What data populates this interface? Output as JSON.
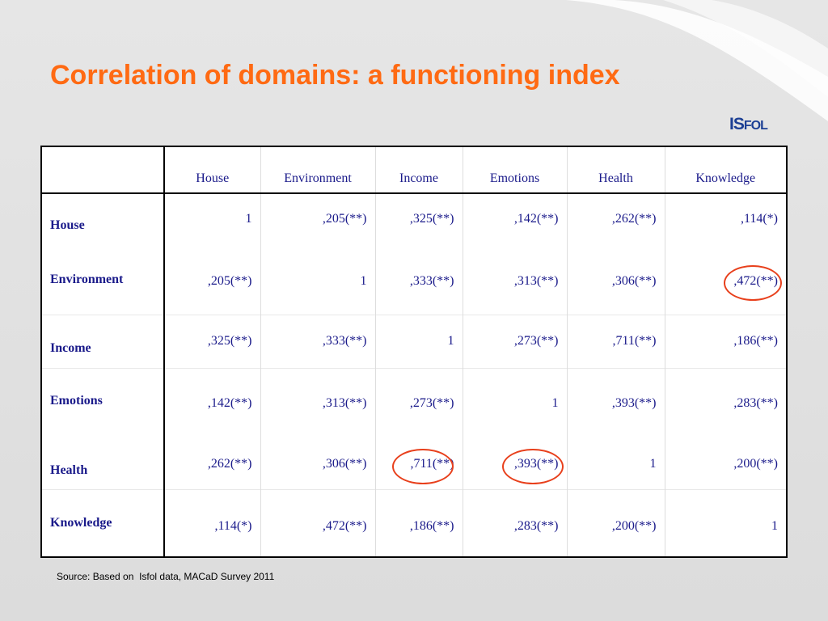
{
  "slide": {
    "title": "Correlation of domains: a functioning index",
    "logo_main": "IS",
    "logo_rest": "FOL",
    "source": "Source: Based on  Isfol data, MACaD Survey 2011",
    "colors": {
      "title": "#ff6a13",
      "table_text": "#1a1a8a",
      "highlight": "#e8401c",
      "logo": "#1c3f94"
    }
  },
  "table": {
    "columns": [
      "House",
      "Environment",
      "Income",
      "Emotions",
      "Health",
      "Knowledge"
    ],
    "rows": [
      {
        "label": "House",
        "cells": [
          "1",
          ",205(**)",
          ",325(**)",
          ",142(**)",
          ",262(**)",
          ",114(*)"
        ]
      },
      {
        "label": "Environment",
        "cells": [
          ",205(**)",
          "1",
          ",333(**)",
          ",313(**)",
          ",306(**)",
          ",472(**)"
        ]
      },
      {
        "label": "Income",
        "cells": [
          ",325(**)",
          ",333(**)",
          "1",
          ",273(**)",
          ",711(**)",
          ",186(**)"
        ]
      },
      {
        "label": "Emotions",
        "cells": [
          ",142(**)",
          ",313(**)",
          ",273(**)",
          "1",
          ",393(**)",
          ",283(**)"
        ]
      },
      {
        "label": "Health",
        "cells": [
          ",262(**)",
          ",306(**)",
          ",711(**)",
          ",393(**)",
          "1",
          ",200(**)"
        ]
      },
      {
        "label": "Knowledge",
        "cells": [
          ",114(*)",
          ",472(**)",
          ",186(**)",
          ",283(**)",
          ",200(**)",
          "1"
        ]
      }
    ]
  }
}
